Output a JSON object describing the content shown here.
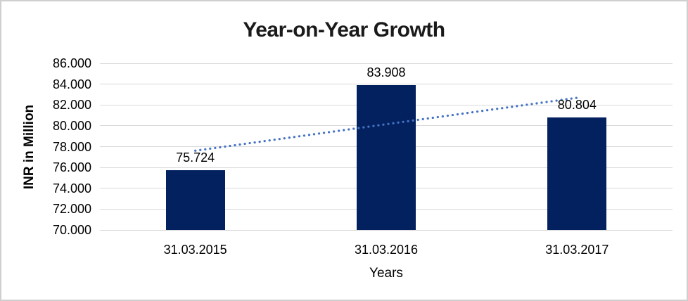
{
  "frame": {
    "border_color": "#cfcfcf",
    "background_color": "#ffffff"
  },
  "chart_data": {
    "type": "bar",
    "title": "Year-on-Year Growth",
    "xlabel": "Years",
    "ylabel": "INR in Million",
    "categories": [
      "31.03.2015",
      "31.03.2016",
      "31.03.2017"
    ],
    "values": [
      75.724,
      83.908,
      80.804
    ],
    "data_labels": [
      "75.724",
      "83.908",
      "80.804"
    ],
    "ylim": [
      70,
      86
    ],
    "y_ticks": [
      {
        "value": 70,
        "label": "70.000"
      },
      {
        "value": 72,
        "label": "72.000"
      },
      {
        "value": 74,
        "label": "74.000"
      },
      {
        "value": 76,
        "label": "76.000"
      },
      {
        "value": 78,
        "label": "78.000"
      },
      {
        "value": 80,
        "label": "80.000"
      },
      {
        "value": 82,
        "label": "82.000"
      },
      {
        "value": 84,
        "label": "84.000"
      },
      {
        "value": 86,
        "label": "86.000"
      }
    ],
    "grid": true,
    "gridline_color": "#d9d9d9",
    "bar_color": "#03215f",
    "legend": "none",
    "trendline": {
      "type": "linear",
      "style": "dotted",
      "color": "#4472c4",
      "start_value": 77.61,
      "end_value": 82.69
    }
  }
}
